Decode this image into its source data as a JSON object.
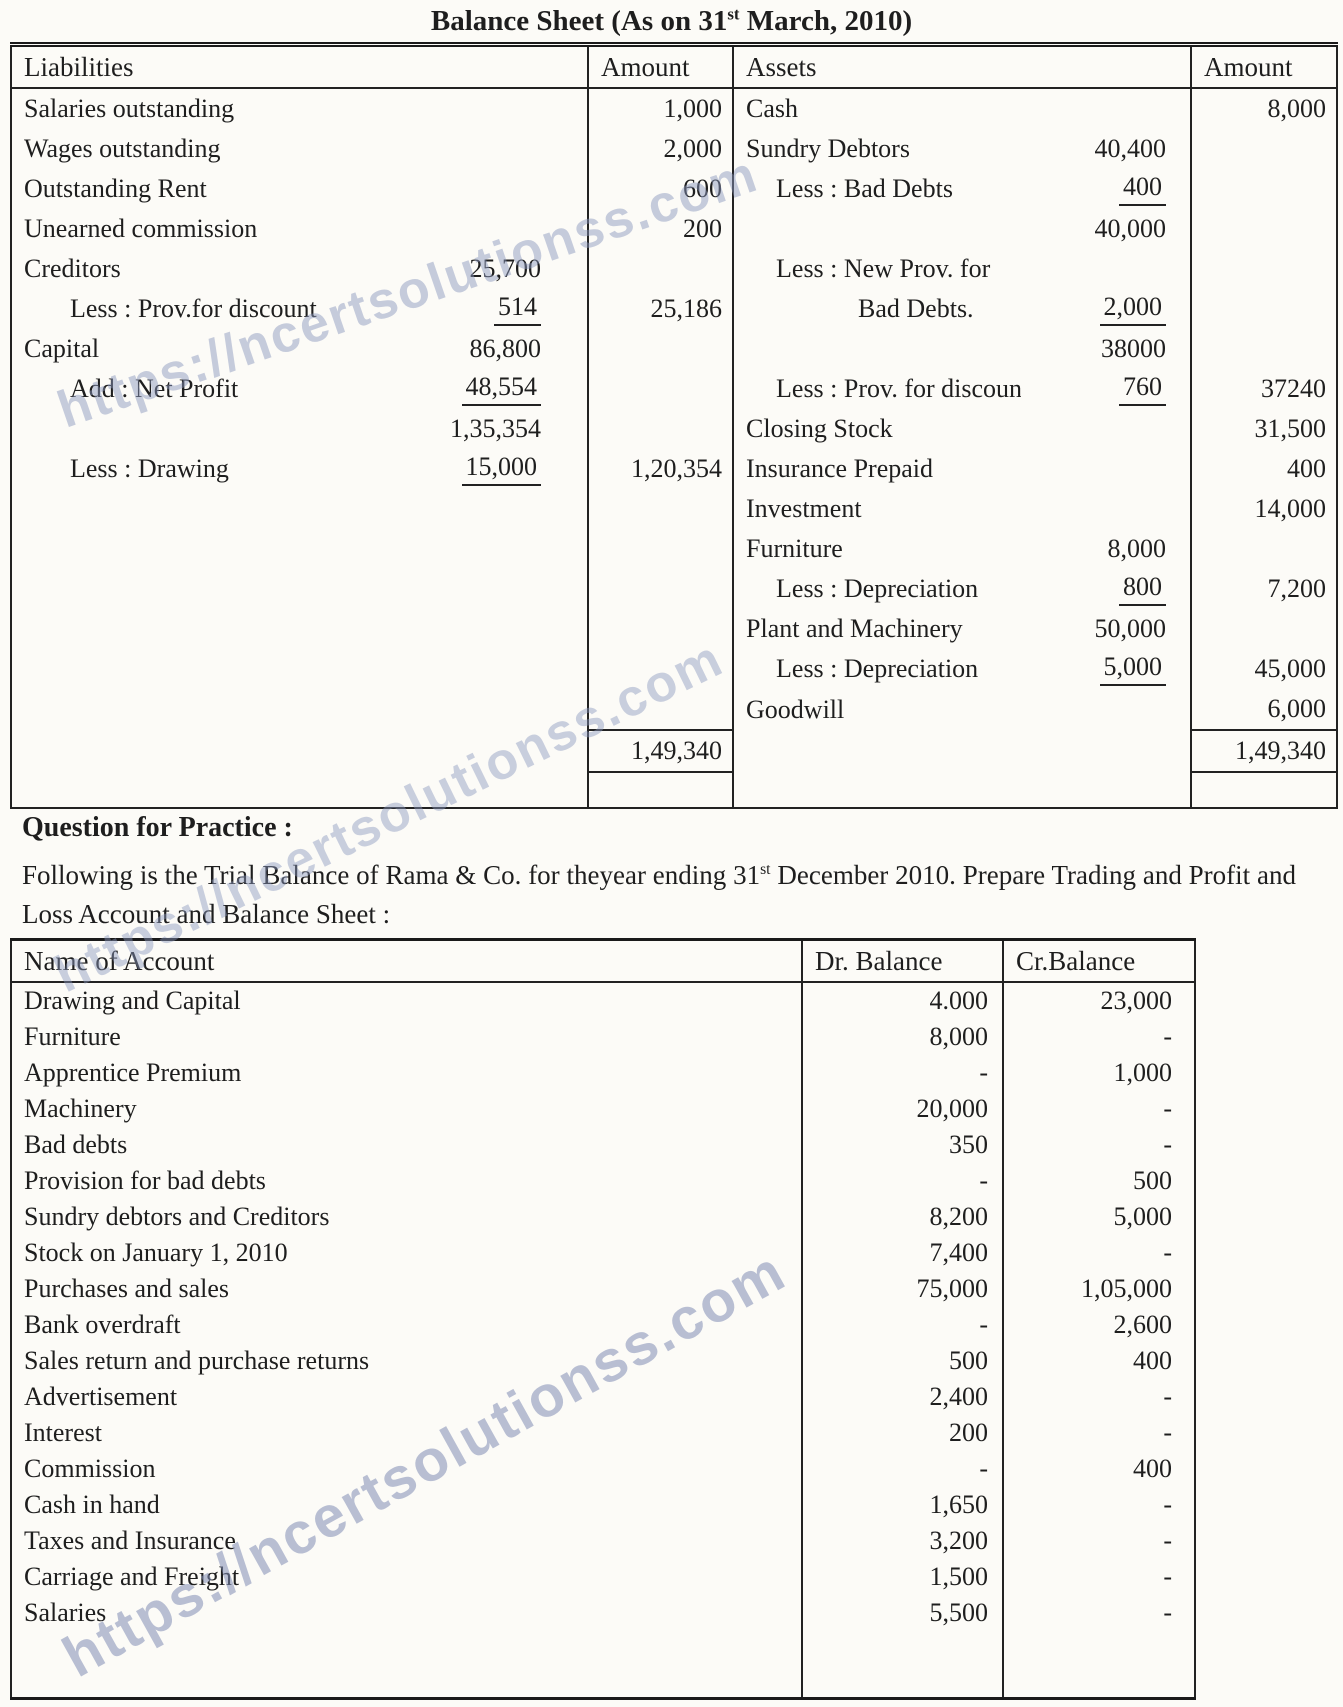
{
  "watermark": {
    "text": "https://ncertsolutionss.com"
  },
  "balance_sheet": {
    "title": {
      "prefix": "Balance Sheet (As on 31",
      "sup": "st",
      "suffix": " March, 2010)"
    },
    "headers": {
      "liabilities": "Liabilities",
      "amount_left": "Amount",
      "assets": "Assets",
      "amount_right": "Amount"
    },
    "rows": [
      {
        "liab_label": "Salaries outstanding",
        "liab_amount": "1,000",
        "asset_label": "Cash",
        "asset_amount": "8,000"
      },
      {
        "liab_label": "Wages outstanding",
        "liab_amount": "2,000",
        "asset_label": "Sundry Debtors",
        "asset_sub": "40,400"
      },
      {
        "liab_label": "Outstanding Rent",
        "liab_amount": "600",
        "asset_label": "Less : Bad Debts",
        "asset_indent": 1,
        "asset_sub": "400",
        "asset_sub_underlined": true
      },
      {
        "liab_label": "Unearned commission",
        "liab_amount": "200",
        "asset_sub": "40,000"
      },
      {
        "liab_label": "Creditors",
        "liab_sub": "25,700",
        "asset_label": "Less : New Prov. for",
        "asset_indent": 1
      },
      {
        "liab_label": "Less : Prov.for discount",
        "liab_indent": 1,
        "liab_sub": "514",
        "liab_sub_underlined": true,
        "liab_amount": "25,186",
        "asset_label": "Bad Debts.",
        "asset_indent": 2,
        "asset_sub": "2,000",
        "asset_sub_underlined": true
      },
      {
        "liab_label": "Capital",
        "liab_sub": "86,800",
        "asset_sub": "38000"
      },
      {
        "liab_label": "Add : Net Profit",
        "liab_indent": 1,
        "liab_sub": "48,554",
        "liab_sub_underlined": true,
        "asset_label": "Less : Prov. for discount",
        "asset_indent": 1,
        "asset_sub": "760",
        "asset_sub_underlined": true,
        "asset_amount": "37240"
      },
      {
        "liab_sub": "1,35,354",
        "asset_label": "Closing Stock",
        "asset_amount": "31,500"
      },
      {
        "liab_label": "Less : Drawing",
        "liab_indent": 1,
        "liab_sub": "15,000",
        "liab_sub_underlined": true,
        "liab_amount": "1,20,354",
        "asset_label": "Insurance Prepaid",
        "asset_amount": "400"
      },
      {
        "asset_label": "Investment",
        "asset_amount": "14,000"
      },
      {
        "asset_label": "Furniture",
        "asset_sub": "8,000"
      },
      {
        "asset_label": "Less : Depreciation",
        "asset_indent": 1,
        "asset_sub": "800",
        "asset_sub_underlined": true,
        "asset_amount": "7,200"
      },
      {
        "asset_label": "Plant and Machinery",
        "asset_sub": "50,000"
      },
      {
        "asset_label": "Less : Depreciation",
        "asset_indent": 1,
        "asset_sub": "5,000",
        "asset_sub_underlined": true,
        "asset_amount": "45,000"
      },
      {
        "asset_label": "Goodwill",
        "asset_amount": "6,000"
      }
    ],
    "totals": {
      "left": "1,49,340",
      "right": "1,49,340"
    }
  },
  "practice": {
    "heading": "Question for Practice :",
    "intro": {
      "prefix": "Following is the Trial Balance of Rama & Co. for theyear ending 31",
      "sup": "st",
      "suffix": " December 2010. Prepare Trading and Profit and Loss Account and Balance Sheet :"
    }
  },
  "trial_balance": {
    "headers": {
      "name": "Name of Account",
      "dr": "Dr. Balance",
      "cr": "Cr.Balance"
    },
    "rows": [
      {
        "name": "Drawing and Capital",
        "dr": "4.000",
        "cr": "23,000"
      },
      {
        "name": "Furniture",
        "dr": "8,000",
        "cr": "-"
      },
      {
        "name": "Apprentice Premium",
        "dr": "-",
        "cr": "1,000"
      },
      {
        "name": "Machinery",
        "dr": "20,000",
        "cr": "-"
      },
      {
        "name": "Bad debts",
        "dr": "350",
        "cr": "-"
      },
      {
        "name": "Provision for bad debts",
        "dr": "-",
        "cr": "500"
      },
      {
        "name": "Sundry debtors and Creditors",
        "dr": "8,200",
        "cr": "5,000"
      },
      {
        "name": "Stock on January 1, 2010",
        "dr": "7,400",
        "cr": "-"
      },
      {
        "name": "Purchases and sales",
        "dr": "75,000",
        "cr": "1,05,000"
      },
      {
        "name": "Bank overdraft",
        "dr": "-",
        "cr": "2,600"
      },
      {
        "name": "Sales return and purchase returns",
        "dr": "500",
        "cr": "400"
      },
      {
        "name": "Advertisement",
        "dr": "2,400",
        "cr": "-"
      },
      {
        "name": "Interest",
        "dr": "200",
        "cr": "-"
      },
      {
        "name": "Commission",
        "dr": "-",
        "cr": "400"
      },
      {
        "name": "Cash in hand",
        "dr": "1,650",
        "cr": "-"
      },
      {
        "name": "Taxes and Insurance",
        "dr": "3,200",
        "cr": "-"
      },
      {
        "name": "Carriage and Freight",
        "dr": "1,500",
        "cr": "-"
      },
      {
        "name": "Salaries",
        "dr": "5,500",
        "cr": "-"
      }
    ]
  }
}
